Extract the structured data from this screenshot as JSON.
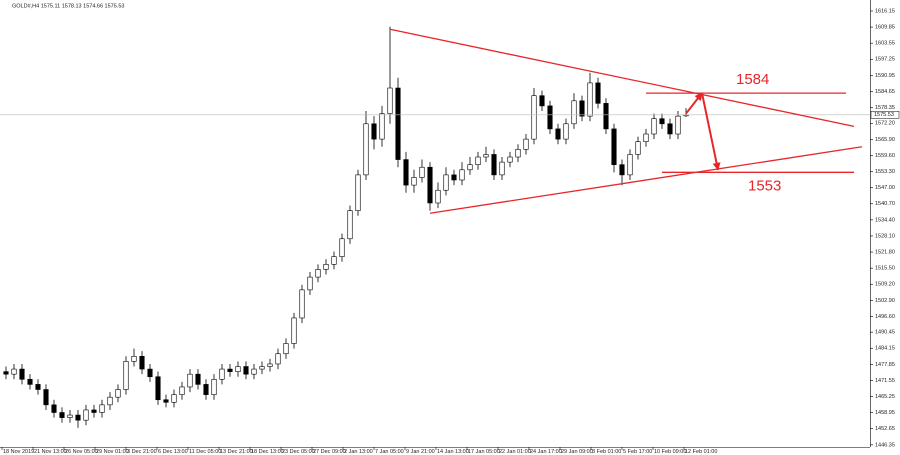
{
  "chart_data": {
    "type": "candlestick",
    "header": "GOLD#,H4  1575.11 1578.13 1574.66 1575.53",
    "xlim": [
      -0.75,
      108
    ],
    "ylim": [
      1445.5,
      1620.45
    ],
    "xticks": [
      {
        "value": -0.5,
        "label": "18 Nov 2019"
      },
      {
        "value": 3.375,
        "label": "21 Nov 13:00"
      },
      {
        "value": 7.25,
        "label": "26 Nov 05:00"
      },
      {
        "value": 11.125,
        "label": "29 Nov 01:00"
      },
      {
        "value": 15,
        "label": "3 Dec 21:00"
      },
      {
        "value": 18.875,
        "label": "6 Dec 13:00"
      },
      {
        "value": 22.75,
        "label": "11 Dec 05:00"
      },
      {
        "value": 26.625,
        "label": "13 Dec 21:00"
      },
      {
        "value": 30.5,
        "label": "18 Dec 13:00"
      },
      {
        "value": 34.375,
        "label": "23 Dec 05:00"
      },
      {
        "value": 38.25,
        "label": "27 Dec 09:00"
      },
      {
        "value": 42.125,
        "label": "2 Jan 13:00"
      },
      {
        "value": 46,
        "label": "7 Jan 05:00"
      },
      {
        "value": 49.875,
        "label": "9 Jan 21:00"
      },
      {
        "value": 53.75,
        "label": "14 Jan 13:00"
      },
      {
        "value": 57.625,
        "label": "17 Jan 05:00"
      },
      {
        "value": 61.5,
        "label": "22 Jan 01:00"
      },
      {
        "value": 65.375,
        "label": "24 Jan 17:00"
      },
      {
        "value": 69.25,
        "label": "29 Jan 09:00"
      },
      {
        "value": 73.125,
        "label": "3 Feb 01:00"
      },
      {
        "value": 77,
        "label": "5 Feb 17:00"
      },
      {
        "value": 80.875,
        "label": "10 Feb 09:00"
      },
      {
        "value": 84.75,
        "label": "12 Feb 01:00"
      }
    ],
    "yticks": [
      1616.15,
      1609.85,
      1603.55,
      1597.25,
      1590.95,
      1584.65,
      1578.35,
      {
        "value": 1572.2,
        "label": "1572.20"
      },
      {
        "value": 1565.9,
        "label": "1565.90"
      },
      {
        "value": 1559.6,
        "label": "1559.60"
      },
      {
        "value": 1553.3,
        "label": "1553.30"
      },
      {
        "value": 1547,
        "label": "1547.00"
      },
      {
        "value": 1540.7,
        "label": "1540.70"
      },
      {
        "value": 1534.4,
        "label": "1534.40"
      },
      {
        "value": 1528.1,
        "label": "1528.10"
      },
      {
        "value": 1521.8,
        "label": "1521.80"
      },
      {
        "value": 1515.5,
        "label": "1515.50"
      },
      {
        "value": 1509.2,
        "label": "1509.20"
      },
      {
        "value": 1502.9,
        "label": "1502.90"
      },
      {
        "value": 1496.6,
        "label": "1496.60"
      },
      1490.45,
      1484.15,
      1477.85,
      1471.55,
      1465.25,
      1458.95,
      1452.65,
      1446.35
    ],
    "open": [
      1475,
      1474,
      1476,
      1472,
      1470,
      1468,
      1462,
      1459,
      1457,
      1458,
      1456,
      1460,
      1459,
      1462,
      1465,
      1468,
      1479,
      1481,
      1476,
      1473,
      1464,
      1463,
      1466,
      1469,
      1474,
      1470,
      1466,
      1472,
      1476,
      1475,
      1477,
      1474,
      1476,
      1477,
      1478,
      1482,
      1486,
      1496,
      1507,
      1512,
      1515,
      1517,
      1520,
      1527,
      1538,
      1552,
      1572,
      1566,
      1576,
      1586,
      1558,
      1548,
      1551,
      1555,
      1541,
      1546,
      1552,
      1550,
      1554,
      1556,
      1559,
      1560,
      1552,
      1557,
      1559,
      1562,
      1566,
      1583,
      1579,
      1570,
      1566,
      1572,
      1581,
      1575,
      1588,
      1580,
      1570,
      1556,
      1552,
      1560,
      1565,
      1568,
      1574,
      1572,
      1568,
      1575.11
    ],
    "high": [
      1477,
      1478,
      1478,
      1474,
      1472,
      1470,
      1464,
      1461,
      1460,
      1460,
      1462,
      1462,
      1464,
      1467,
      1470,
      1481,
      1484,
      1483,
      1478,
      1475,
      1466,
      1468,
      1471,
      1476,
      1476,
      1472,
      1474,
      1478,
      1478,
      1479,
      1479,
      1478,
      1479,
      1480,
      1484,
      1488,
      1498,
      1509,
      1514,
      1517,
      1519,
      1522,
      1529,
      1540,
      1554,
      1577,
      1575,
      1579,
      1610,
      1590,
      1561,
      1554,
      1558,
      1557,
      1549,
      1555,
      1554,
      1557,
      1559,
      1561,
      1563,
      1562,
      1559,
      1561,
      1564,
      1568,
      1586,
      1585,
      1581,
      1572,
      1574,
      1584,
      1583,
      1592,
      1590,
      1582,
      1572,
      1558,
      1562,
      1567,
      1570,
      1576,
      1576,
      1574,
      1577,
      1578.13
    ],
    "low": [
      1472,
      1472,
      1470,
      1468,
      1466,
      1460,
      1457,
      1455,
      1455,
      1453,
      1454,
      1457,
      1457,
      1460,
      1463,
      1466,
      1477,
      1474,
      1471,
      1462,
      1461,
      1461,
      1464,
      1467,
      1468,
      1464,
      1464,
      1470,
      1473,
      1473,
      1472,
      1472,
      1474,
      1475,
      1476,
      1480,
      1484,
      1494,
      1505,
      1510,
      1513,
      1515,
      1518,
      1525,
      1536,
      1550,
      1562,
      1563,
      1572,
      1555,
      1545,
      1545,
      1549,
      1538,
      1539,
      1544,
      1548,
      1548,
      1552,
      1554,
      1557,
      1550,
      1550,
      1555,
      1557,
      1560,
      1564,
      1577,
      1568,
      1564,
      1564,
      1570,
      1573,
      1573,
      1578,
      1568,
      1553,
      1548,
      1550,
      1558,
      1563,
      1566,
      1570,
      1566,
      1566,
      1574.66
    ],
    "close": [
      1474,
      1476,
      1472,
      1470,
      1468,
      1462,
      1459,
      1457,
      1458,
      1456,
      1460,
      1459,
      1462,
      1465,
      1468,
      1479,
      1481,
      1476,
      1473,
      1464,
      1463,
      1466,
      1469,
      1474,
      1470,
      1466,
      1472,
      1476,
      1475,
      1477,
      1474,
      1476,
      1477,
      1478,
      1482,
      1486,
      1496,
      1507,
      1512,
      1515,
      1517,
      1520,
      1527,
      1538,
      1552,
      1572,
      1566,
      1576,
      1586,
      1558,
      1548,
      1551,
      1555,
      1541,
      1546,
      1552,
      1550,
      1554,
      1556,
      1559,
      1560,
      1552,
      1557,
      1559,
      1562,
      1566,
      1583,
      1579,
      1570,
      1566,
      1572,
      1581,
      1575,
      1588,
      1580,
      1570,
      1556,
      1552,
      1560,
      1565,
      1568,
      1574,
      1572,
      1568,
      1575,
      1575.53
    ],
    "trendlines": [
      {
        "x": [
          48,
          106
        ],
        "y": [
          1609,
          1571
        ]
      },
      {
        "x": [
          53,
          107
        ],
        "y": [
          1537,
          1563
        ]
      }
    ],
    "levels": [
      {
        "value": 1584,
        "x": [
          80,
          105
        ]
      },
      {
        "value": 1553,
        "x": [
          82,
          106
        ]
      }
    ],
    "arrows": [
      {
        "x": [
          85,
          87
        ],
        "y": [
          1576,
          1584
        ]
      },
      {
        "x": [
          87,
          89
        ],
        "y": [
          1584,
          1554
        ]
      }
    ],
    "line_color": "#e8262a"
  }
}
